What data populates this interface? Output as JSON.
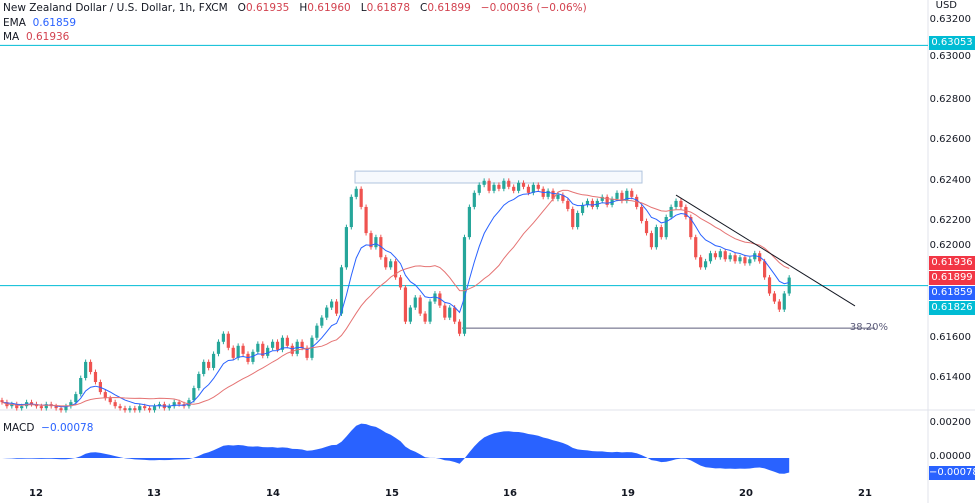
{
  "header": {
    "title": "New Zealand Dollar / U.S. Dollar, 1h, FXCM",
    "open_label": "O",
    "open": "0.61935",
    "high_label": "H",
    "high": "0.61960",
    "low_label": "L",
    "low": "0.61878",
    "close_label": "C",
    "close": "0.61899",
    "change": "−0.00036 (−0.06%)"
  },
  "indicators": {
    "ema_label": "EMA",
    "ema_value": "0.61859",
    "ma_label": "MA",
    "ma_value": "0.61936",
    "macd_label": "MACD",
    "macd_value": "−0.00078"
  },
  "price_axis": {
    "currency": "USD",
    "ticks": [
      "0.63200",
      "0.63000",
      "0.62800",
      "0.62600",
      "0.62400",
      "0.62200",
      "0.62000",
      "0.61600",
      "0.61400"
    ]
  },
  "price_tags": [
    {
      "value": "0.63053",
      "color": "#00bcd4"
    },
    {
      "value": "0.61936",
      "color": "#f23645"
    },
    {
      "value": "0.61899",
      "color": "#f23645"
    },
    {
      "value": "0.61859",
      "color": "#2962ff"
    },
    {
      "value": "0.61826",
      "color": "#00bcd4"
    }
  ],
  "macd_axis": {
    "ticks": [
      "0.00200",
      "0.00000"
    ],
    "tag": "−0.00078"
  },
  "x_axis": {
    "labels": [
      "12",
      "13",
      "14",
      "15",
      "16",
      "19",
      "20",
      "21"
    ]
  },
  "annotations": {
    "fib_label": "38.20%",
    "fib_price": 0.61648,
    "hline_upper": 0.63053,
    "hline_lower": 0.61859,
    "range_box": [
      0.62428,
      0.62369
    ],
    "trendline": [
      0.62309,
      0.61758
    ]
  },
  "colors": {
    "up": "#26a69a",
    "down": "#ef5350",
    "ema": "#2962ff",
    "ma": "#e57373",
    "macd": "#2962ff",
    "hline": "#00bcd4",
    "fib": "#5c5c7a"
  },
  "chart_data": {
    "type": "candlestick",
    "symbol": "NZD/USD",
    "interval": "1h",
    "closes": [
      0.6128,
      0.6126,
      0.6127,
      0.6125,
      0.6126,
      0.6128,
      0.6127,
      0.6126,
      0.6125,
      0.6127,
      0.6126,
      0.6125,
      0.6124,
      0.6126,
      0.6128,
      0.6132,
      0.614,
      0.6148,
      0.6143,
      0.6138,
      0.6133,
      0.613,
      0.6128,
      0.6126,
      0.6125,
      0.6124,
      0.6125,
      0.6124,
      0.6126,
      0.6125,
      0.6124,
      0.6126,
      0.6127,
      0.6125,
      0.6126,
      0.6128,
      0.6127,
      0.6126,
      0.6129,
      0.6135,
      0.6142,
      0.6148,
      0.6145,
      0.6152,
      0.6158,
      0.6162,
      0.6155,
      0.615,
      0.6156,
      0.6152,
      0.6148,
      0.6153,
      0.6157,
      0.6151,
      0.6155,
      0.6158,
      0.6154,
      0.616,
      0.6156,
      0.6152,
      0.6158,
      0.6155,
      0.615,
      0.616,
      0.6166,
      0.617,
      0.6175,
      0.6178,
      0.6172,
      0.6195,
      0.6215,
      0.623,
      0.6234,
      0.6225,
      0.6212,
      0.6205,
      0.621,
      0.62,
      0.6195,
      0.6198,
      0.619,
      0.6185,
      0.6168,
      0.6175,
      0.618,
      0.6172,
      0.6168,
      0.6178,
      0.6182,
      0.6176,
      0.617,
      0.6175,
      0.6168,
      0.6162,
      0.621,
      0.6225,
      0.6232,
      0.6236,
      0.6238,
      0.6233,
      0.6236,
      0.6234,
      0.6238,
      0.6235,
      0.6233,
      0.6237,
      0.6235,
      0.6232,
      0.6236,
      0.6234,
      0.623,
      0.6233,
      0.6229,
      0.6231,
      0.6228,
      0.6224,
      0.6215,
      0.6222,
      0.6226,
      0.6228,
      0.6225,
      0.6228,
      0.623,
      0.6226,
      0.6229,
      0.6232,
      0.6228,
      0.6233,
      0.623,
      0.6225,
      0.6218,
      0.6212,
      0.6205,
      0.6215,
      0.621,
      0.622,
      0.6225,
      0.6228,
      0.6225,
      0.622,
      0.621,
      0.62,
      0.6195,
      0.6198,
      0.6202,
      0.62,
      0.6203,
      0.6199,
      0.6201,
      0.6198,
      0.62,
      0.6197,
      0.6199,
      0.6202,
      0.6198,
      0.619,
      0.6182,
      0.6178,
      0.6174,
      0.6182,
      0.61899
    ]
  }
}
